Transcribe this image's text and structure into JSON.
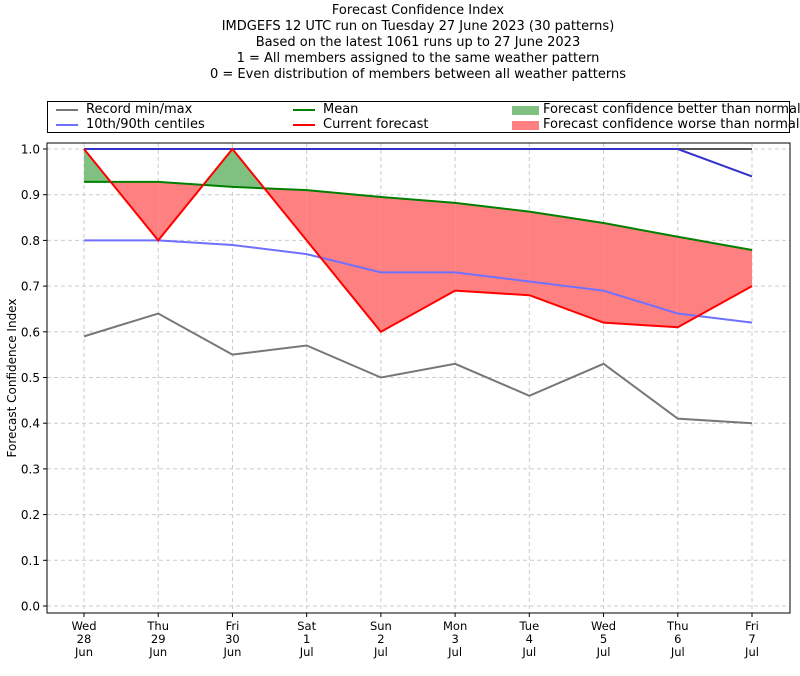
{
  "chart_data": {
    "type": "line",
    "title_lines": [
      "Forecast Confidence Index",
      "IMDGEFS 12 UTC run on Tuesday 27 June 2023 (30 patterns)",
      "Based on the latest 1061 runs up to 27 June 2023",
      "1 = All members assigned to the same weather pattern",
      "0 = Even distribution of members between all weather patterns"
    ],
    "xlabel": "",
    "ylabel": "Forecast Confidence Index",
    "ylim": [
      0.0,
      1.0
    ],
    "yticks": [
      "0.0",
      "0.1",
      "0.2",
      "0.3",
      "0.4",
      "0.5",
      "0.6",
      "0.7",
      "0.8",
      "0.9",
      "1.0"
    ],
    "categories": [
      {
        "day": "Wed",
        "date": "28",
        "month": "Jun"
      },
      {
        "day": "Thu",
        "date": "29",
        "month": "Jun"
      },
      {
        "day": "Fri",
        "date": "30",
        "month": "Jun"
      },
      {
        "day": "Sat",
        "date": "1",
        "month": "Jul"
      },
      {
        "day": "Sun",
        "date": "2",
        "month": "Jul"
      },
      {
        "day": "Mon",
        "date": "3",
        "month": "Jul"
      },
      {
        "day": "Tue",
        "date": "4",
        "month": "Jul"
      },
      {
        "day": "Wed",
        "date": "5",
        "month": "Jul"
      },
      {
        "day": "Thu",
        "date": "6",
        "month": "Jul"
      },
      {
        "day": "Fri",
        "date": "7",
        "month": "Jul"
      }
    ],
    "grid": true,
    "legend_placement": "top",
    "series": [
      {
        "name": "Record min",
        "legend_group": "Record min/max",
        "color": "#777777",
        "values": [
          0.59,
          0.64,
          0.55,
          0.57,
          0.5,
          0.53,
          0.46,
          0.53,
          0.41,
          0.4
        ]
      },
      {
        "name": "Record max",
        "legend_group": "Record min/max",
        "color": "#777777",
        "values": [
          1.0,
          1.0,
          1.0,
          1.0,
          1.0,
          1.0,
          1.0,
          1.0,
          1.0,
          1.0
        ]
      },
      {
        "name": "10th centile",
        "legend_group": "10th/90th centiles",
        "color": "#7070ff",
        "values": [
          0.8,
          0.8,
          0.79,
          0.77,
          0.73,
          0.73,
          0.71,
          0.69,
          0.64,
          0.62
        ]
      },
      {
        "name": "90th centile",
        "legend_group": "10th/90th centiles",
        "color": "#7070ff",
        "values": [
          1.0,
          1.0,
          1.0,
          1.0,
          1.0,
          1.0,
          1.0,
          1.0,
          1.0,
          0.94
        ]
      },
      {
        "name": "Mean",
        "color": "#008000",
        "values": [
          0.928,
          0.928,
          0.917,
          0.91,
          0.895,
          0.882,
          0.863,
          0.838,
          0.808,
          0.779
        ]
      },
      {
        "name": "Current forecast",
        "color": "#ff0000",
        "values": [
          1.0,
          0.8,
          1.0,
          0.8,
          0.6,
          0.69,
          0.68,
          0.62,
          0.61,
          0.7
        ]
      }
    ],
    "fills": [
      {
        "name": "Forecast confidence better than normal",
        "color": "#80c080",
        "between": [
          "Current forecast",
          "Mean"
        ],
        "where": "forecast > mean"
      },
      {
        "name": "Forecast confidence worse than normal",
        "color": "#ff8080",
        "between": [
          "Current forecast",
          "Mean"
        ],
        "where": "forecast < mean"
      }
    ],
    "legend": [
      {
        "label": "Record min/max",
        "kind": "line",
        "color": "#777777"
      },
      {
        "label": "10th/90th centiles",
        "kind": "line",
        "color": "#7070ff"
      },
      {
        "label": "Mean",
        "kind": "line",
        "color": "#008000"
      },
      {
        "label": "Current forecast",
        "kind": "line",
        "color": "#ff0000"
      },
      {
        "label": "Forecast confidence better than normal",
        "kind": "patch",
        "color": "#80c080"
      },
      {
        "label": "Forecast confidence worse than normal",
        "kind": "patch",
        "color": "#ff8080"
      }
    ]
  }
}
